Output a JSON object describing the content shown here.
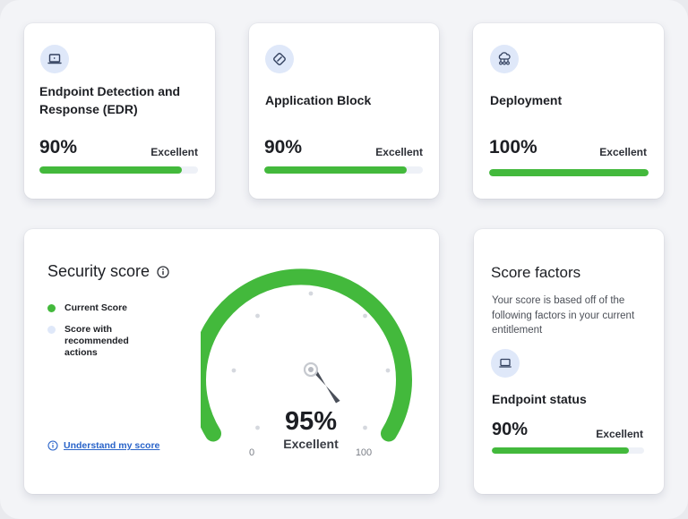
{
  "cards": [
    {
      "title": "Endpoint Detection and Response (EDR)",
      "value_text": "90%",
      "value": 0.9,
      "rating": "Excellent",
      "icon": "laptop-icon"
    },
    {
      "title": "Application Block",
      "value_text": "90%",
      "value": 0.9,
      "rating": "Excellent",
      "icon": "app-block-icon"
    },
    {
      "title": "Deployment",
      "value_text": "100%",
      "value": 1.0,
      "rating": "Excellent",
      "icon": "cloud-network-icon"
    }
  ],
  "security_score": {
    "title": "Security score",
    "legend": [
      {
        "label": "Current Score",
        "color": "#43b93c"
      },
      {
        "label": "Score with recommended actions",
        "color": "#dfe8f9"
      }
    ],
    "link_label": "Understand my score",
    "gauge": {
      "value": 95,
      "value_text": "95%",
      "rating": "Excellent",
      "min": 0,
      "max": 100,
      "min_label": "0",
      "max_label": "100",
      "color": "#43b93c"
    }
  },
  "score_factors": {
    "title": "Score factors",
    "description": "Your score is based off of the following factors in your current entitlement",
    "item": {
      "title": "Endpoint status",
      "value_text": "90%",
      "value": 0.9,
      "rating": "Excellent",
      "icon": "laptop-icon"
    }
  },
  "colors": {
    "accent": "#43b93c",
    "icon_bg": "#dfe8f9",
    "link": "#2a64c9"
  }
}
